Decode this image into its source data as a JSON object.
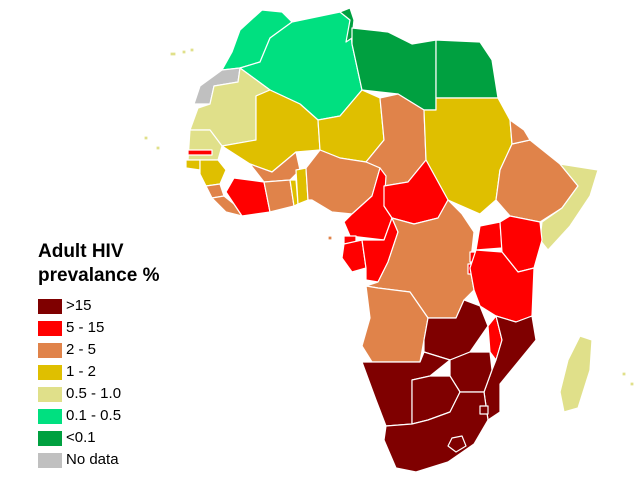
{
  "legend": {
    "title_line1": "Adult HIV",
    "title_line2": "prevalance %",
    "items": [
      {
        "label": ">15",
        "color": "#7f0000"
      },
      {
        "label": "5 - 15",
        "color": "#ff0000"
      },
      {
        "label": "2 - 5",
        "color": "#e0834a"
      },
      {
        "label": "1 - 2",
        "color": "#dfbf00"
      },
      {
        "label": "0.5 - 1.0",
        "color": "#e0e08a"
      },
      {
        "label": "0.1 - 0.5",
        "color": "#00e080"
      },
      {
        "label": "<0.1",
        "color": "#00a040"
      },
      {
        "label": "No data",
        "color": "#c0c0c0"
      }
    ]
  }
}
